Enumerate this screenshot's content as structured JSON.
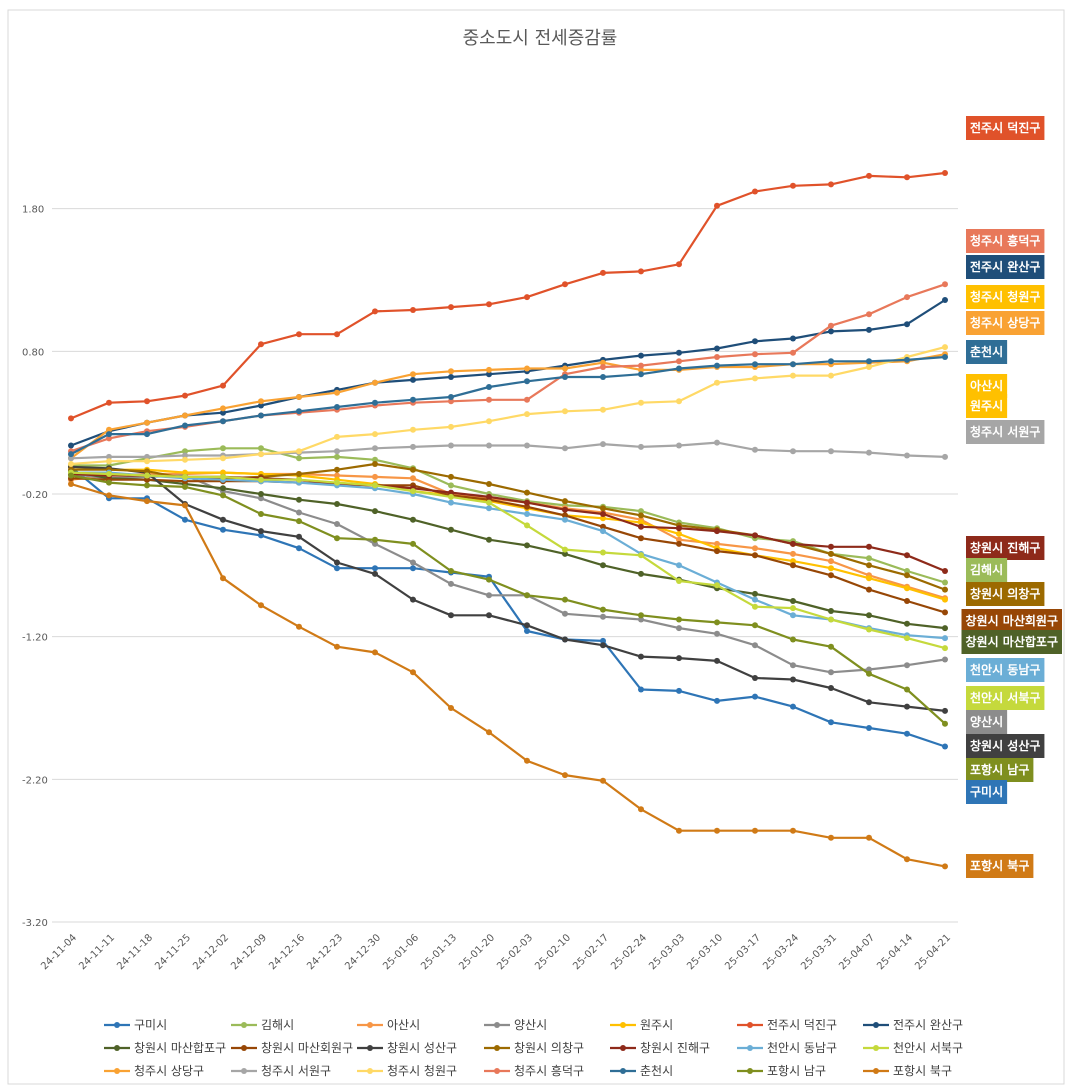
{
  "chart_data": {
    "type": "line",
    "title": "중소도시 전세증감률",
    "xlabel": "",
    "ylabel": "",
    "ylim": [
      -3.2,
      2.8
    ],
    "yticks": [
      1.8,
      0.8,
      -0.2,
      -1.2,
      -2.2,
      -3.2
    ],
    "ytick_labels": [
      "1.80",
      "0.80",
      "-0.20",
      "-1.20",
      "-2.20",
      "-3.20"
    ],
    "grid": true,
    "legend": "bottom",
    "categories": [
      "24-11-04",
      "24-11-11",
      "24-11-18",
      "24-11-25",
      "24-12-02",
      "24-12-09",
      "24-12-16",
      "24-12-23",
      "24-12-30",
      "25-01-06",
      "25-01-13",
      "25-01-20",
      "25-02-03",
      "25-02-10",
      "25-02-17",
      "25-02-24",
      "25-03-03",
      "25-03-10",
      "25-03-17",
      "25-03-24",
      "25-03-31",
      "25-04-07",
      "25-04-14",
      "25-04-21"
    ],
    "series": [
      {
        "name": "구미시",
        "color": "#2E75B6",
        "values": [
          -0.01,
          -0.23,
          -0.23,
          -0.38,
          -0.45,
          -0.49,
          -0.58,
          -0.72,
          -0.72,
          -0.72,
          -0.75,
          -0.78,
          -1.16,
          -1.22,
          -1.23,
          -1.57,
          -1.58,
          -1.65,
          -1.62,
          -1.69,
          -1.8,
          -1.84,
          -1.88,
          -1.97
        ]
      },
      {
        "name": "김해시",
        "color": "#9BBB59",
        "values": [
          0.0,
          0.0,
          0.05,
          0.1,
          0.12,
          0.12,
          0.05,
          0.06,
          0.04,
          -0.02,
          -0.14,
          -0.2,
          -0.25,
          -0.28,
          -0.29,
          -0.32,
          -0.4,
          -0.44,
          -0.51,
          -0.53,
          -0.62,
          -0.65,
          -0.74,
          -0.82
        ]
      },
      {
        "name": "아산시",
        "color": "#F79646",
        "values": [
          -0.1,
          -0.07,
          -0.06,
          -0.06,
          -0.05,
          -0.06,
          -0.06,
          -0.07,
          -0.08,
          -0.09,
          -0.2,
          -0.23,
          -0.26,
          -0.3,
          -0.33,
          -0.38,
          -0.52,
          -0.55,
          -0.58,
          -0.62,
          -0.67,
          -0.77,
          -0.85,
          -0.93
        ]
      },
      {
        "name": "양산시",
        "color": "#8C8C8C",
        "values": [
          -0.06,
          -0.09,
          -0.08,
          -0.07,
          -0.18,
          -0.23,
          -0.33,
          -0.41,
          -0.55,
          -0.68,
          -0.83,
          -0.91,
          -0.91,
          -1.04,
          -1.06,
          -1.08,
          -1.14,
          -1.18,
          -1.26,
          -1.4,
          -1.45,
          -1.43,
          -1.4,
          -1.36
        ]
      },
      {
        "name": "원주시",
        "color": "#FFC000",
        "values": [
          -0.01,
          -0.03,
          -0.03,
          -0.05,
          -0.05,
          -0.06,
          -0.07,
          -0.1,
          -0.13,
          -0.18,
          -0.21,
          -0.25,
          -0.3,
          -0.35,
          -0.37,
          -0.4,
          -0.48,
          -0.58,
          -0.63,
          -0.67,
          -0.72,
          -0.79,
          -0.86,
          -0.94
        ]
      },
      {
        "name": "전주시 덕진구",
        "color": "#E0522A",
        "values": [
          0.33,
          0.44,
          0.45,
          0.49,
          0.56,
          0.85,
          0.92,
          0.92,
          1.08,
          1.09,
          1.11,
          1.13,
          1.18,
          1.27,
          1.35,
          1.36,
          1.41,
          1.82,
          1.92,
          1.96,
          1.97,
          2.03,
          2.02,
          2.05
        ]
      },
      {
        "name": "전주시 완산구",
        "color": "#1F4E79",
        "values": [
          0.14,
          0.24,
          0.3,
          0.35,
          0.37,
          0.42,
          0.48,
          0.53,
          0.58,
          0.6,
          0.62,
          0.64,
          0.66,
          0.7,
          0.74,
          0.77,
          0.79,
          0.82,
          0.87,
          0.89,
          0.94,
          0.95,
          0.99,
          1.16
        ]
      },
      {
        "name": "창원시 마산합포구",
        "color": "#4F6228",
        "values": [
          -0.04,
          -0.09,
          -0.1,
          -0.13,
          -0.16,
          -0.2,
          -0.24,
          -0.27,
          -0.32,
          -0.38,
          -0.45,
          -0.52,
          -0.56,
          -0.62,
          -0.7,
          -0.76,
          -0.8,
          -0.86,
          -0.9,
          -0.95,
          -1.02,
          -1.05,
          -1.11,
          -1.14
        ]
      },
      {
        "name": "창원시 마산회원구",
        "color": "#974706",
        "values": [
          -0.09,
          -0.1,
          -0.1,
          -0.11,
          -0.11,
          -0.11,
          -0.12,
          -0.13,
          -0.14,
          -0.14,
          -0.21,
          -0.24,
          -0.29,
          -0.35,
          -0.43,
          -0.51,
          -0.55,
          -0.6,
          -0.63,
          -0.7,
          -0.77,
          -0.87,
          -0.95,
          -1.03
        ]
      },
      {
        "name": "창원시 성산구",
        "color": "#404040",
        "values": [
          -0.01,
          -0.02,
          -0.05,
          -0.27,
          -0.38,
          -0.46,
          -0.5,
          -0.68,
          -0.76,
          -0.94,
          -1.05,
          -1.05,
          -1.12,
          -1.22,
          -1.26,
          -1.34,
          -1.35,
          -1.37,
          -1.49,
          -1.5,
          -1.56,
          -1.66,
          -1.69,
          -1.72
        ]
      },
      {
        "name": "창원시 의창구",
        "color": "#9C6A00",
        "values": [
          -0.03,
          -0.03,
          -0.04,
          -0.09,
          -0.09,
          -0.08,
          -0.06,
          -0.03,
          0.01,
          -0.03,
          -0.08,
          -0.13,
          -0.19,
          -0.25,
          -0.3,
          -0.35,
          -0.42,
          -0.45,
          -0.49,
          -0.55,
          -0.62,
          -0.7,
          -0.77,
          -0.87
        ]
      },
      {
        "name": "창원시 진해구",
        "color": "#8E2A1A",
        "values": [
          -0.06,
          -0.07,
          -0.07,
          -0.08,
          -0.08,
          -0.09,
          -0.1,
          -0.13,
          -0.14,
          -0.16,
          -0.19,
          -0.22,
          -0.26,
          -0.31,
          -0.34,
          -0.43,
          -0.44,
          -0.46,
          -0.49,
          -0.55,
          -0.57,
          -0.57,
          -0.63,
          -0.74
        ]
      },
      {
        "name": "천안시 동남구",
        "color": "#6BAED6",
        "values": [
          -0.05,
          -0.05,
          -0.07,
          -0.09,
          -0.1,
          -0.11,
          -0.12,
          -0.14,
          -0.16,
          -0.2,
          -0.26,
          -0.3,
          -0.34,
          -0.38,
          -0.46,
          -0.62,
          -0.7,
          -0.82,
          -0.94,
          -1.05,
          -1.08,
          -1.14,
          -1.19,
          -1.21
        ]
      },
      {
        "name": "천안시 서북구",
        "color": "#C5D93C",
        "values": [
          -0.05,
          -0.06,
          -0.07,
          -0.08,
          -0.08,
          -0.1,
          -0.1,
          -0.12,
          -0.14,
          -0.18,
          -0.22,
          -0.26,
          -0.42,
          -0.59,
          -0.61,
          -0.63,
          -0.81,
          -0.84,
          -0.99,
          -1.0,
          -1.08,
          -1.15,
          -1.21,
          -1.28
        ]
      },
      {
        "name": "청주시 상당구",
        "color": "#F9A233",
        "values": [
          0.05,
          0.25,
          0.3,
          0.35,
          0.4,
          0.45,
          0.48,
          0.51,
          0.58,
          0.64,
          0.66,
          0.67,
          0.68,
          0.68,
          0.72,
          0.67,
          0.67,
          0.69,
          0.69,
          0.71,
          0.71,
          0.72,
          0.73,
          0.78
        ]
      },
      {
        "name": "청주시 서원구",
        "color": "#A6A6A6",
        "values": [
          0.05,
          0.06,
          0.06,
          0.07,
          0.07,
          0.08,
          0.09,
          0.1,
          0.12,
          0.13,
          0.14,
          0.14,
          0.14,
          0.12,
          0.15,
          0.13,
          0.14,
          0.16,
          0.11,
          0.1,
          0.1,
          0.09,
          0.07,
          0.06
        ]
      },
      {
        "name": "청주시 청원구",
        "color": "#FFD966",
        "values": [
          0.01,
          0.03,
          0.03,
          0.04,
          0.05,
          0.08,
          0.1,
          0.2,
          0.22,
          0.25,
          0.27,
          0.31,
          0.36,
          0.38,
          0.39,
          0.44,
          0.45,
          0.58,
          0.61,
          0.63,
          0.63,
          0.69,
          0.76,
          0.83
        ]
      },
      {
        "name": "청주시 흥덕구",
        "color": "#E8785A",
        "values": [
          0.1,
          0.19,
          0.24,
          0.27,
          0.31,
          0.35,
          0.37,
          0.39,
          0.42,
          0.44,
          0.45,
          0.46,
          0.46,
          0.64,
          0.69,
          0.7,
          0.73,
          0.76,
          0.78,
          0.79,
          0.98,
          1.06,
          1.18,
          1.27
        ]
      },
      {
        "name": "춘천시",
        "color": "#2F6E96",
        "values": [
          0.08,
          0.22,
          0.22,
          0.28,
          0.31,
          0.35,
          0.38,
          0.41,
          0.44,
          0.46,
          0.48,
          0.55,
          0.59,
          0.62,
          0.62,
          0.64,
          0.68,
          0.7,
          0.71,
          0.71,
          0.73,
          0.73,
          0.74,
          0.76
        ]
      },
      {
        "name": "포항시 남구",
        "color": "#7F8F1F",
        "values": [
          -0.07,
          -0.12,
          -0.14,
          -0.15,
          -0.21,
          -0.34,
          -0.39,
          -0.51,
          -0.52,
          -0.55,
          -0.74,
          -0.8,
          -0.91,
          -0.94,
          -1.01,
          -1.05,
          -1.08,
          -1.1,
          -1.12,
          -1.22,
          -1.27,
          -1.46,
          -1.57,
          -1.81
        ]
      },
      {
        "name": "포항시 북구",
        "color": "#D07A16",
        "values": [
          -0.13,
          -0.21,
          -0.25,
          -0.28,
          -0.79,
          -0.98,
          -1.13,
          -1.27,
          -1.31,
          -1.45,
          -1.7,
          -1.87,
          -2.07,
          -2.17,
          -2.21,
          -2.41,
          -2.56,
          -2.56,
          -2.56,
          -2.56,
          -2.61,
          -2.61,
          -2.76,
          -2.81
        ]
      }
    ],
    "end_labels": [
      {
        "series": "전주시 덕진구",
        "text": "전주시 덕진구",
        "color": "#E0522A"
      },
      {
        "series": "청주시 흥덕구",
        "text": "청주시 흥덕구",
        "color": "#E8785A"
      },
      {
        "series": "전주시 완산구",
        "text": "전주시 완산구",
        "color": "#1F4E79"
      },
      {
        "series": "청주시 청원구",
        "text": "청주시 청원구",
        "color": "#FFC000"
      },
      {
        "series": "청주시 상당구",
        "text": "청주시 상당구",
        "color": "#F9A233"
      },
      {
        "series": "춘천시",
        "text": "춘천시",
        "color": "#2F6E96"
      },
      {
        "series": "아산시",
        "text": "아산시",
        "color": "#FFC000"
      },
      {
        "series": "원주시",
        "text": "원주시",
        "color": "#FFC000"
      },
      {
        "series": "청주시 서원구",
        "text": "청주시 서원구",
        "color": "#A6A6A6"
      },
      {
        "series": "창원시 진해구",
        "text": "창원시 진해구",
        "color": "#8E2A1A"
      },
      {
        "series": "김해시",
        "text": "김해시",
        "color": "#9BBB59"
      },
      {
        "series": "창원시 의창구",
        "text": "창원시 의창구",
        "color": "#9C6A00"
      },
      {
        "series": "창원시 마산회원구",
        "text": "창원시 마산회원구",
        "color": "#974706"
      },
      {
        "series": "창원시 마산합포구",
        "text": "창원시 마산합포구",
        "color": "#4F6228"
      },
      {
        "series": "천안시 동남구",
        "text": "천안시 동남구",
        "color": "#6BAED6"
      },
      {
        "series": "천안시 서북구",
        "text": "천안시 서북구",
        "color": "#C5D93C"
      },
      {
        "series": "양산시",
        "text": "양산시",
        "color": "#8C8C8C"
      },
      {
        "series": "창원시 성산구",
        "text": "창원시 성산구",
        "color": "#404040"
      },
      {
        "series": "포항시 남구",
        "text": "포항시 남구",
        "color": "#7F8F1F"
      },
      {
        "series": "구미시",
        "text": "구미시",
        "color": "#2E75B6"
      },
      {
        "series": "포항시 북구",
        "text": "포항시 북구",
        "color": "#D07A16"
      }
    ]
  }
}
